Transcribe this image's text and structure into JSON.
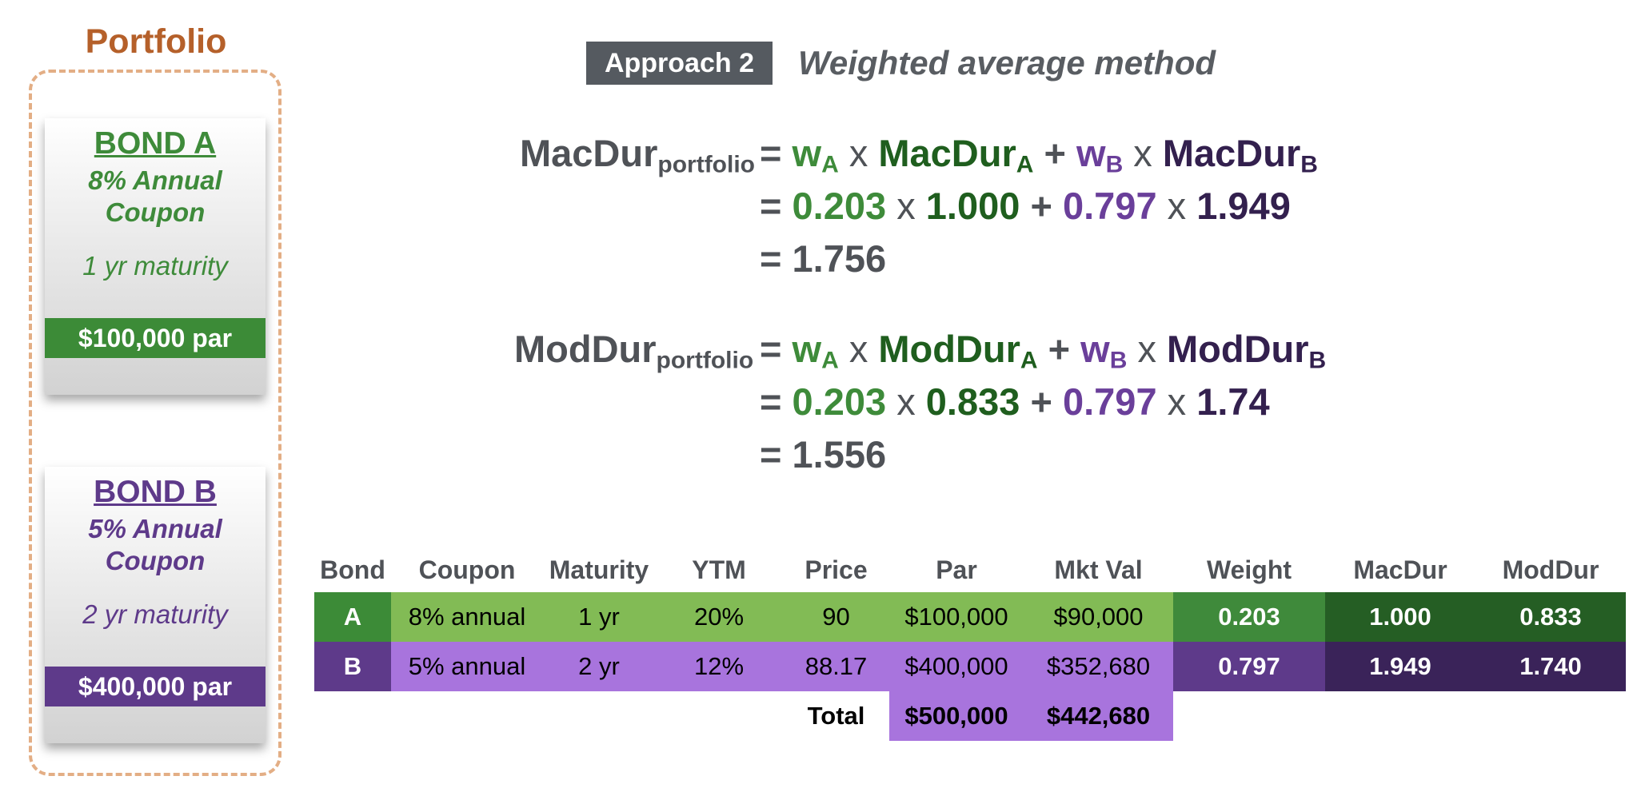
{
  "portfolio": {
    "title": "Portfolio",
    "bond_a": {
      "name": "BOND A",
      "coupon_line1": "8% Annual",
      "coupon_line2": "Coupon",
      "maturity": "1 yr maturity",
      "par": "$100,000 par",
      "color": "#3C8B37"
    },
    "bond_b": {
      "name": "BOND B",
      "coupon_line1": "5% Annual",
      "coupon_line2": "Coupon",
      "maturity": "2 yr maturity",
      "par": "$400,000 par",
      "color": "#5E3A8A"
    }
  },
  "header": {
    "badge": "Approach 2",
    "subtitle": "Weighted average method"
  },
  "mac": {
    "lhs": "MacDur",
    "lhs_sub": "portfolio",
    "eq": "=",
    "w_a": "w",
    "w_a_sub": "A",
    "times": "x",
    "dur_a": "MacDur",
    "dur_a_sub": "A",
    "plus": "+",
    "w_b": "w",
    "w_b_sub": "B",
    "dur_b": "MacDur",
    "dur_b_sub": "B",
    "val_w_a": "0.203",
    "val_dur_a": "1.000",
    "val_w_b": "0.797",
    "val_dur_b": "1.949",
    "result": "= 1.756"
  },
  "mod": {
    "lhs": "ModDur",
    "lhs_sub": "portfolio",
    "eq": "=",
    "w_a": "w",
    "w_a_sub": "A",
    "times": "x",
    "dur_a": "ModDur",
    "dur_a_sub": "A",
    "plus": "+",
    "w_b": "w",
    "w_b_sub": "B",
    "dur_b": "ModDur",
    "dur_b_sub": "B",
    "val_w_a": "0.203",
    "val_dur_a": "0.833",
    "val_w_b": "0.797",
    "val_dur_b": "1.74",
    "result": "= 1.556"
  },
  "table": {
    "headers": [
      "Bond",
      "Coupon",
      "Maturity",
      "YTM",
      "Price",
      "Par",
      "Mkt Val",
      "Weight",
      "MacDur",
      "ModDur"
    ],
    "rows": [
      [
        "A",
        "8% annual",
        "1 yr",
        "20%",
        "90",
        "$100,000",
        "$90,000",
        "0.203",
        "1.000",
        "0.833"
      ],
      [
        "B",
        "5% annual",
        "2 yr",
        "12%",
        "88.17",
        "$400,000",
        "$352,680",
        "0.797",
        "1.949",
        "1.740"
      ]
    ],
    "total": {
      "label": "Total",
      "par": "$500,000",
      "mkt_val": "$442,680"
    },
    "colors": {
      "a_bond": "#3C8B37",
      "a_light": "#82BB55",
      "a_weight": "#3F8A3B",
      "a_dark": "#255E24",
      "b_bond": "#5E3A8A",
      "b_light": "#A874DD",
      "b_weight": "#5E3A8A",
      "b_dark": "#3A2359",
      "total_bg": "#A874DD"
    }
  }
}
